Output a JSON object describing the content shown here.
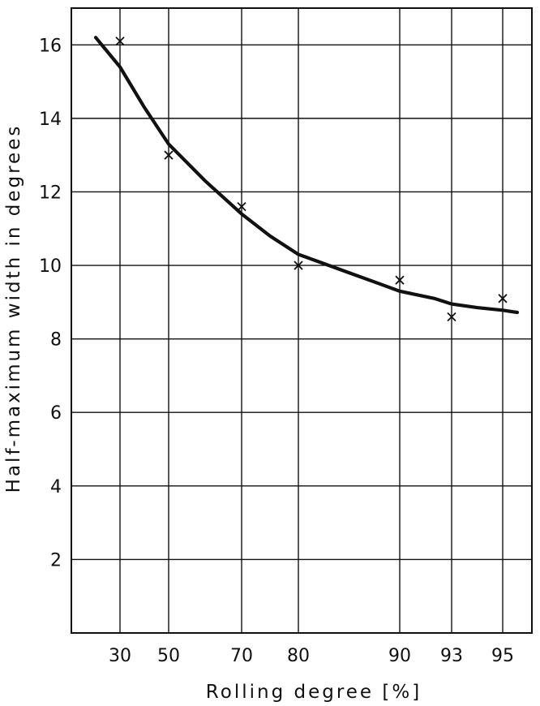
{
  "chart_data": {
    "type": "scatter",
    "title": "",
    "xlabel": "Rolling degree [%]",
    "ylabel": "Half-maximum width in degrees",
    "x_ticks": [
      "30",
      "50",
      "70",
      "80",
      "90",
      "93",
      "95"
    ],
    "y_ticks": [
      "2",
      "4",
      "6",
      "8",
      "10",
      "12",
      "14",
      "16"
    ],
    "x_axis_scale": "non-linear (tick positions follow the printed labels)",
    "ylim": [
      0,
      17
    ],
    "grid": true,
    "legend": "none",
    "series": [
      {
        "marker": "x",
        "x": [
          30,
          50,
          70,
          80,
          90,
          93,
          95
        ],
        "y": [
          16.1,
          13.0,
          11.6,
          10.0,
          9.6,
          8.6,
          9.1
        ]
      }
    ],
    "fit_curve": {
      "x": [
        25,
        30,
        40,
        50,
        60,
        70,
        75,
        80,
        82,
        85,
        88,
        90,
        92,
        93,
        94,
        95,
        96
      ],
      "y": [
        16.2,
        15.4,
        14.3,
        13.3,
        12.3,
        11.4,
        10.8,
        10.3,
        10.1,
        9.8,
        9.5,
        9.3,
        9.1,
        8.95,
        8.85,
        8.78,
        8.72
      ]
    },
    "colors": {
      "ink": "#111111",
      "background": "#ffffff"
    }
  }
}
